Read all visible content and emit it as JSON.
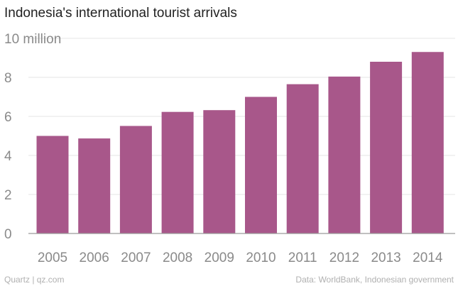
{
  "chart_data": {
    "type": "bar",
    "title": "Indonesia's international tourist arrivals",
    "categories": [
      "2005",
      "2006",
      "2007",
      "2008",
      "2009",
      "2010",
      "2011",
      "2012",
      "2013",
      "2014"
    ],
    "values": [
      5.0,
      4.87,
      5.51,
      6.23,
      6.32,
      7.0,
      7.65,
      8.04,
      8.8,
      9.3
    ],
    "ylim": [
      0,
      10
    ],
    "yticks": [
      {
        "value": 0,
        "label": "0"
      },
      {
        "value": 2,
        "label": "2"
      },
      {
        "value": 4,
        "label": "4"
      },
      {
        "value": 6,
        "label": "6"
      },
      {
        "value": 8,
        "label": "8"
      },
      {
        "value": 10,
        "label": "10 million"
      }
    ],
    "grid": true,
    "bar_color": "#a8578a"
  },
  "footer": {
    "source_left": "Quartz | qz.com",
    "source_right": "Data: WorldBank, Indonesian government"
  }
}
